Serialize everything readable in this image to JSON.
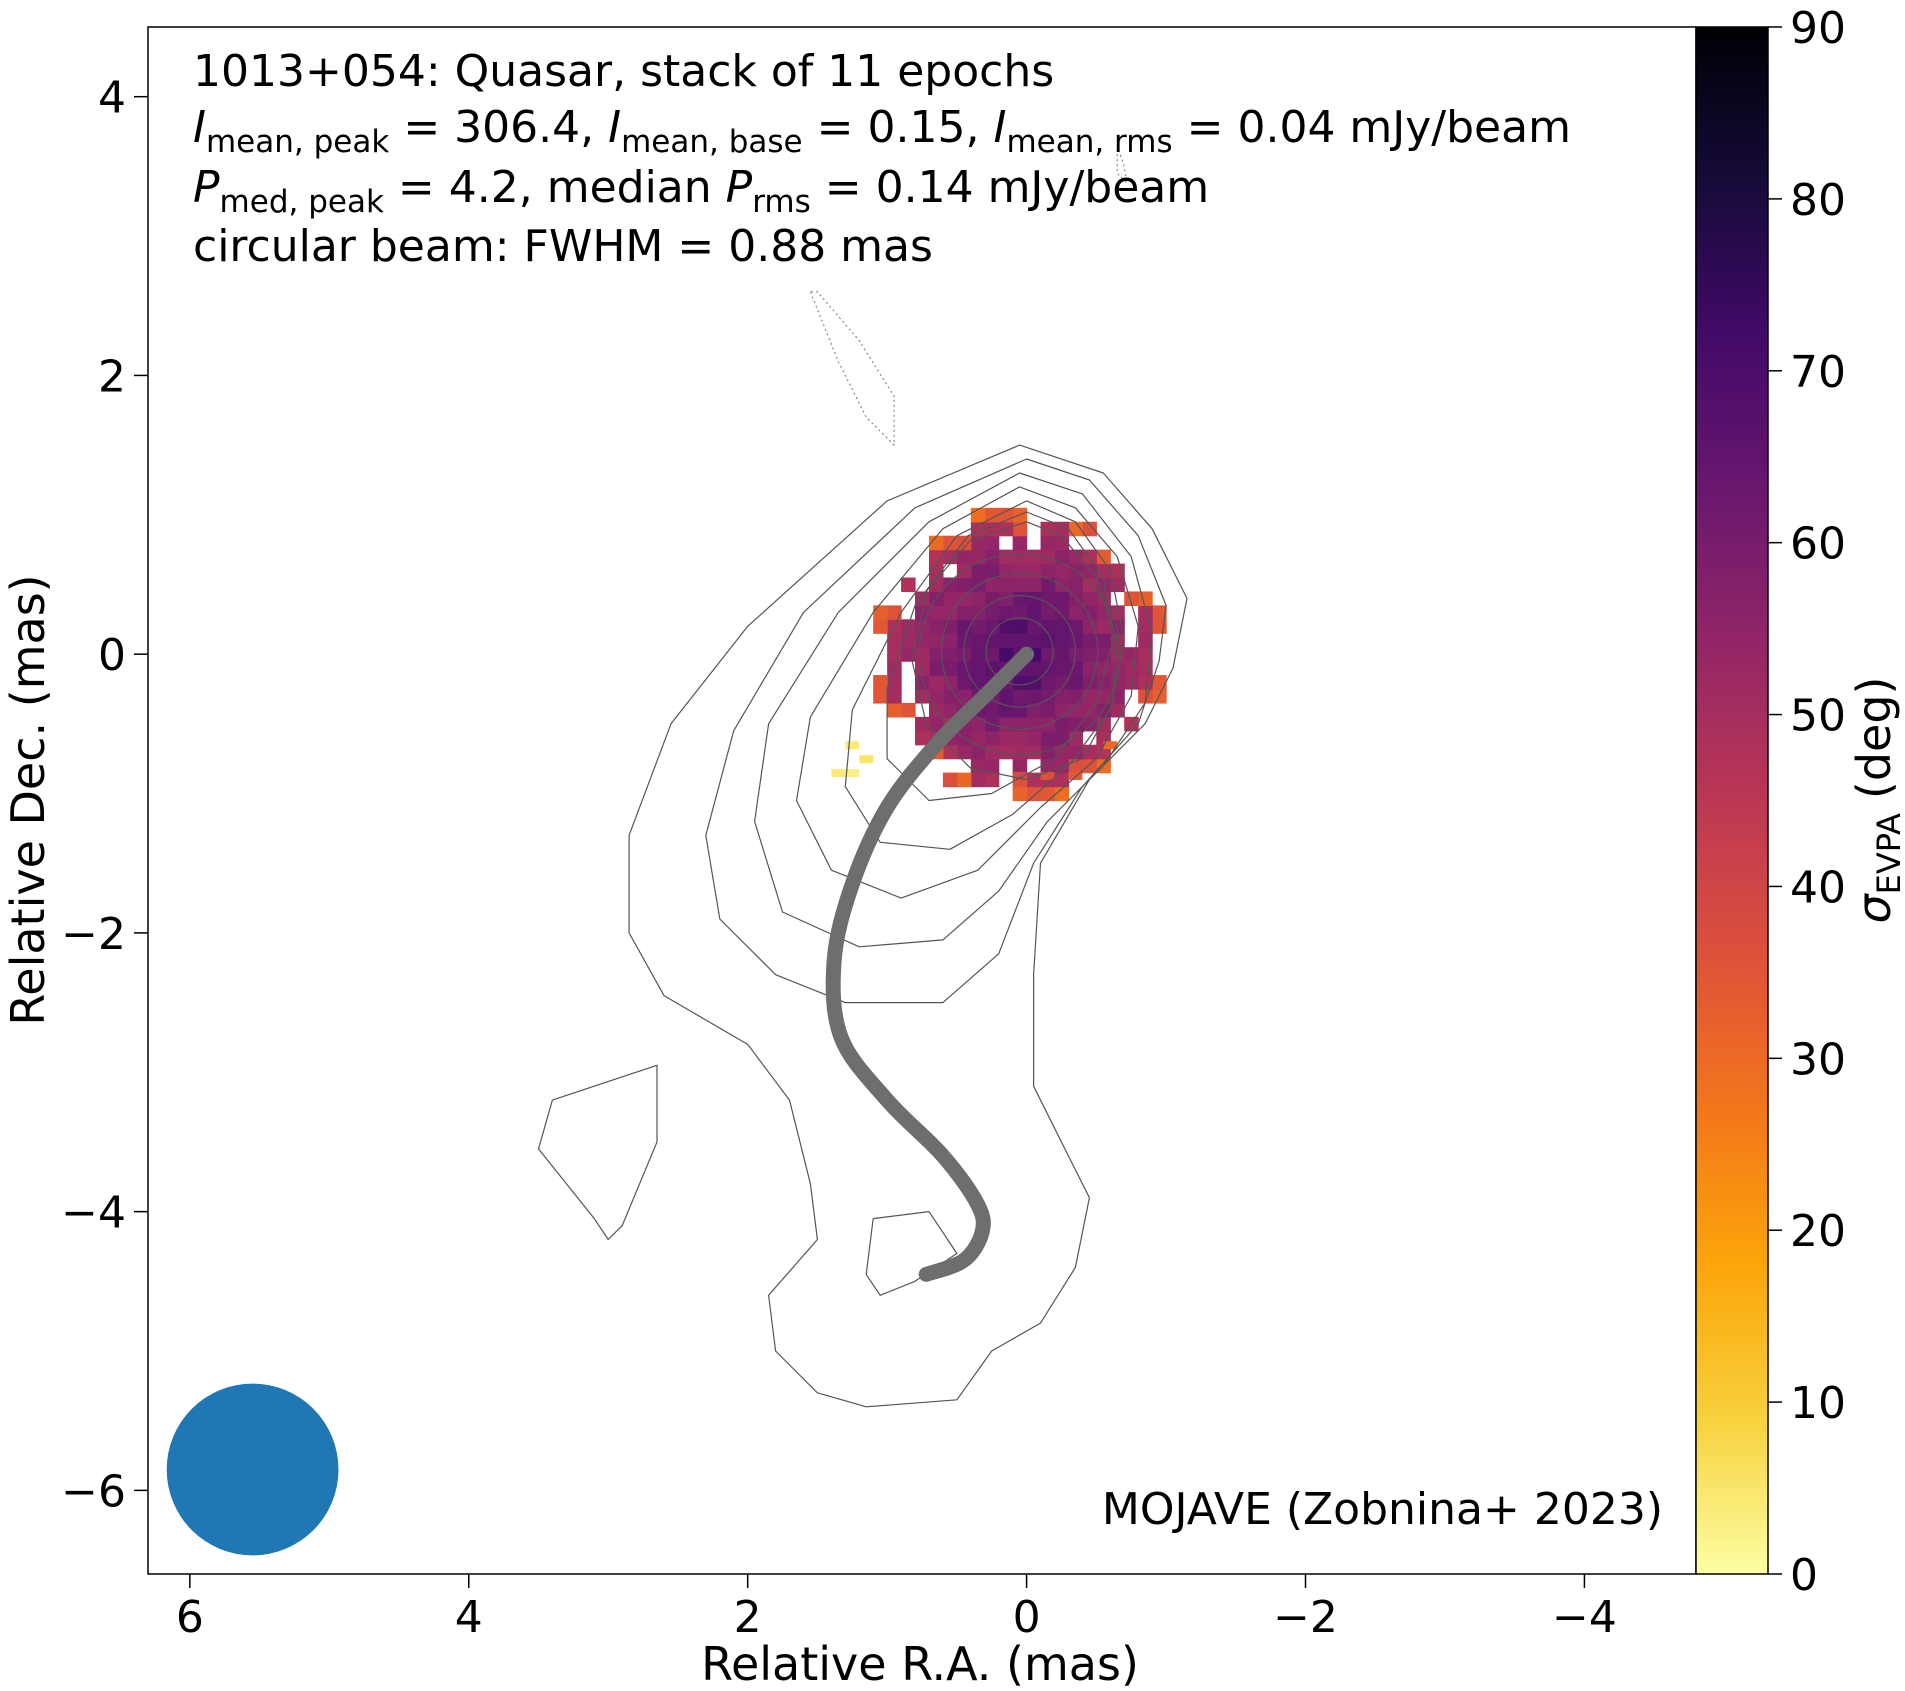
{
  "chart_data": {
    "type": "heatmap",
    "title_lines": [
      "1013+054: Quasar, stack of 11 epochs",
      "I_mean,peak = 306.4, I_mean,base = 0.15, I_mean,rms = 0.04 mJy/beam",
      "P_med,peak = 4.2, median P_rms = 0.14 mJy/beam",
      "circular beam: FWHM = 0.88 mas"
    ],
    "title_parts": {
      "source": "1013+054: Quasar, stack of 11 epochs",
      "i_sym": "I",
      "i_peak_sub": "mean, peak",
      "i_peak_val": "= 306.4,",
      "i_base_sub": "mean, base",
      "i_base_val": "= 0.15,",
      "i_rms_sub": "mean, rms",
      "i_rms_val": "= 0.04 mJy/beam",
      "p_sym": "P",
      "p_peak_sub": "med, peak",
      "p_peak_val": "= 4.2, median",
      "p_rms_sub": "rms",
      "p_rms_val": "= 0.14 mJy/beam",
      "beam": "circular beam: FWHM = 0.88 mas"
    },
    "annotation": "MOJAVE (Zobnina+ 2023)",
    "xlabel": "Relative R.A. (mas)",
    "ylabel": "Relative Dec. (mas)",
    "xlim": [
      6.3,
      -4.8
    ],
    "ylim": [
      -6.6,
      4.5
    ],
    "xticks": [
      6,
      4,
      2,
      0,
      -2,
      -4
    ],
    "yticks": [
      4,
      2,
      0,
      -2,
      -4,
      -6
    ],
    "xtick_labels": [
      "6",
      "4",
      "2",
      "0",
      "−2",
      "−4"
    ],
    "ytick_labels": [
      "4",
      "2",
      "0",
      "−2",
      "−4",
      "−6"
    ],
    "colorbar": {
      "label": "σ_EVPA (deg)",
      "label_sym": "σ",
      "label_sub": "EVPA",
      "label_unit": "(deg)",
      "range": [
        0,
        90
      ],
      "ticks": [
        0,
        10,
        20,
        30,
        40,
        50,
        60,
        70,
        80,
        90
      ],
      "colormap": "inferno_r",
      "colors": [
        "#fcffa4",
        "#f7d13d",
        "#fca50a",
        "#f3761b",
        "#dd513a",
        "#bc3754",
        "#932667",
        "#6a176e",
        "#420a68",
        "#160b39",
        "#000004"
      ]
    },
    "beam": {
      "fwhm_mas": 0.88,
      "center": [
        5.55,
        -5.85
      ],
      "color": "#1f77b4"
    },
    "ridge_line": {
      "color": "#6e6e6e",
      "points": [
        [
          0.0,
          0.0
        ],
        [
          0.3,
          -0.3
        ],
        [
          0.65,
          -0.65
        ],
        [
          1.0,
          -1.1
        ],
        [
          1.25,
          -1.65
        ],
        [
          1.38,
          -2.2
        ],
        [
          1.33,
          -2.75
        ],
        [
          1.0,
          -3.2
        ],
        [
          0.6,
          -3.6
        ],
        [
          0.35,
          -3.95
        ],
        [
          0.32,
          -4.15
        ],
        [
          0.45,
          -4.35
        ],
        [
          0.72,
          -4.45
        ]
      ]
    },
    "contours": [
      {
        "level": 1,
        "style": "dotted",
        "points": [
          [
            1.55,
            2.6
          ],
          [
            1.35,
            2.1
          ],
          [
            1.15,
            1.7
          ],
          [
            0.95,
            1.5
          ],
          [
            0.95,
            1.85
          ],
          [
            1.2,
            2.25
          ],
          [
            1.5,
            2.6
          ]
        ]
      },
      {
        "level": 1,
        "style": "dotted",
        "points": [
          [
            -0.65,
            3.65
          ],
          [
            -0.7,
            3.5
          ],
          [
            -0.72,
            3.38
          ],
          [
            -0.65,
            3.45
          ],
          [
            -0.65,
            3.65
          ]
        ]
      },
      {
        "level": 1,
        "style": "solid",
        "points": [
          [
            3.4,
            -3.2
          ],
          [
            2.95,
            -3.05
          ],
          [
            2.65,
            -2.95
          ],
          [
            2.65,
            -3.5
          ],
          [
            2.9,
            -4.1
          ],
          [
            3.0,
            -4.2
          ],
          [
            3.1,
            -4.05
          ],
          [
            3.5,
            -3.55
          ],
          [
            3.4,
            -3.2
          ]
        ]
      },
      {
        "level": 1,
        "style": "solid",
        "points": [
          [
            0.7,
            -4.0
          ],
          [
            1.1,
            -4.05
          ],
          [
            1.15,
            -4.45
          ],
          [
            1.05,
            -4.6
          ],
          [
            0.8,
            -4.5
          ],
          [
            0.5,
            -4.3
          ],
          [
            0.7,
            -4.0
          ]
        ]
      },
      {
        "level": 2,
        "style": "solid",
        "points": [
          [
            0.05,
            1.5
          ],
          [
            1.0,
            1.1
          ],
          [
            2.0,
            0.2
          ],
          [
            2.55,
            -0.5
          ],
          [
            2.85,
            -1.3
          ],
          [
            2.85,
            -2.0
          ],
          [
            2.6,
            -2.45
          ],
          [
            2.0,
            -2.8
          ],
          [
            1.7,
            -3.2
          ],
          [
            1.55,
            -3.8
          ],
          [
            1.5,
            -4.2
          ],
          [
            1.85,
            -4.6
          ],
          [
            1.8,
            -5.0
          ],
          [
            1.5,
            -5.3
          ],
          [
            1.15,
            -5.4
          ],
          [
            0.5,
            -5.35
          ],
          [
            0.25,
            -5.0
          ],
          [
            -0.1,
            -4.8
          ],
          [
            -0.35,
            -4.4
          ],
          [
            -0.45,
            -3.9
          ],
          [
            -0.3,
            -3.6
          ],
          [
            -0.05,
            -3.1
          ],
          [
            -0.05,
            -2.3
          ],
          [
            -0.1,
            -1.5
          ],
          [
            -0.45,
            -0.9
          ],
          [
            -0.85,
            -0.5
          ],
          [
            -1.05,
            -0.1
          ],
          [
            -1.15,
            0.4
          ],
          [
            -0.9,
            0.9
          ],
          [
            -0.55,
            1.3
          ],
          [
            0.05,
            1.5
          ]
        ]
      },
      {
        "level": 3,
        "style": "solid",
        "points": [
          [
            0.0,
            1.4
          ],
          [
            0.8,
            1.05
          ],
          [
            1.6,
            0.3
          ],
          [
            2.1,
            -0.55
          ],
          [
            2.3,
            -1.3
          ],
          [
            2.2,
            -1.9
          ],
          [
            1.8,
            -2.3
          ],
          [
            1.3,
            -2.5
          ],
          [
            0.6,
            -2.5
          ],
          [
            0.2,
            -2.15
          ],
          [
            -0.05,
            -1.5
          ],
          [
            -0.4,
            -0.95
          ],
          [
            -0.8,
            -0.5
          ],
          [
            -0.95,
            -0.05
          ],
          [
            -1.0,
            0.35
          ],
          [
            -0.8,
            0.85
          ],
          [
            -0.45,
            1.25
          ],
          [
            0.0,
            1.4
          ]
        ]
      },
      {
        "level": 4,
        "style": "solid",
        "points": [
          [
            0.05,
            1.3
          ],
          [
            0.7,
            0.95
          ],
          [
            1.35,
            0.3
          ],
          [
            1.85,
            -0.5
          ],
          [
            1.95,
            -1.2
          ],
          [
            1.75,
            -1.85
          ],
          [
            1.2,
            -2.1
          ],
          [
            0.6,
            -2.05
          ],
          [
            0.2,
            -1.7
          ],
          [
            -0.15,
            -1.2
          ],
          [
            -0.55,
            -0.8
          ],
          [
            -0.85,
            -0.35
          ],
          [
            -0.9,
            0.15
          ],
          [
            -0.75,
            0.7
          ],
          [
            -0.4,
            1.15
          ],
          [
            0.05,
            1.3
          ]
        ]
      },
      {
        "level": 5,
        "style": "solid",
        "points": [
          [
            0.05,
            1.2
          ],
          [
            0.6,
            0.9
          ],
          [
            1.1,
            0.3
          ],
          [
            1.55,
            -0.45
          ],
          [
            1.65,
            -1.05
          ],
          [
            1.4,
            -1.55
          ],
          [
            0.9,
            -1.75
          ],
          [
            0.35,
            -1.55
          ],
          [
            -0.1,
            -1.1
          ],
          [
            -0.5,
            -0.75
          ],
          [
            -0.75,
            -0.3
          ],
          [
            -0.8,
            0.2
          ],
          [
            -0.65,
            0.7
          ],
          [
            -0.35,
            1.05
          ],
          [
            0.05,
            1.2
          ]
        ]
      },
      {
        "level": 6,
        "style": "solid",
        "points": [
          [
            0.0,
            1.1
          ],
          [
            0.5,
            0.85
          ],
          [
            0.9,
            0.3
          ],
          [
            1.25,
            -0.4
          ],
          [
            1.3,
            -0.95
          ],
          [
            1.05,
            -1.35
          ],
          [
            0.55,
            -1.4
          ],
          [
            0.1,
            -1.15
          ],
          [
            -0.3,
            -0.8
          ],
          [
            -0.6,
            -0.4
          ],
          [
            -0.7,
            0.1
          ],
          [
            -0.6,
            0.6
          ],
          [
            -0.35,
            0.95
          ],
          [
            0.0,
            1.1
          ]
        ]
      },
      {
        "level": 7,
        "style": "solid",
        "points": [
          [
            0.0,
            1.02
          ],
          [
            0.42,
            0.85
          ],
          [
            0.8,
            0.35
          ],
          [
            1.0,
            -0.25
          ],
          [
            1.0,
            -0.75
          ],
          [
            0.7,
            -1.05
          ],
          [
            0.25,
            -1.0
          ],
          [
            -0.2,
            -0.75
          ],
          [
            -0.5,
            -0.35
          ],
          [
            -0.62,
            0.1
          ],
          [
            -0.55,
            0.55
          ],
          [
            -0.3,
            0.9
          ],
          [
            0.0,
            1.02
          ]
        ]
      },
      {
        "level": 8,
        "style": "solid",
        "points": [
          [
            0.0,
            0.95
          ],
          [
            0.4,
            0.82
          ],
          [
            0.72,
            0.45
          ],
          [
            0.82,
            -0.05
          ],
          [
            0.72,
            -0.5
          ],
          [
            0.4,
            -0.82
          ],
          [
            0.0,
            -0.9
          ],
          [
            -0.4,
            -0.75
          ],
          [
            -0.62,
            -0.35
          ],
          [
            -0.65,
            0.1
          ],
          [
            -0.5,
            0.55
          ],
          [
            -0.25,
            0.85
          ],
          [
            0.0,
            0.95
          ]
        ]
      },
      {
        "level": 9,
        "style": "circle",
        "center": [
          0.05,
          0.0
        ],
        "r": 0.72
      },
      {
        "level": 10,
        "style": "circle",
        "center": [
          0.05,
          0.02
        ],
        "r": 0.56
      },
      {
        "level": 11,
        "style": "circle",
        "center": [
          0.05,
          0.02
        ],
        "r": 0.4
      },
      {
        "level": 12,
        "style": "circle",
        "center": [
          0.05,
          0.02
        ],
        "r": 0.24
      }
    ],
    "evpa_map": {
      "pixel_size_mas": 0.1,
      "grid_dx_steps": 12,
      "grid_dy_steps": 10,
      "core_center": [
        0.05,
        0.0
      ],
      "core_radius": 0.98,
      "core_value_center": 70,
      "core_value_edge": 48,
      "ring_radius": [
        0.9,
        1.05
      ],
      "ring_value": 33,
      "weak_pixels": [
        [
          1.25,
          -0.65,
          4
        ],
        [
          1.15,
          -0.75,
          5
        ],
        [
          1.35,
          -0.85,
          4
        ],
        [
          1.25,
          -0.85,
          3
        ],
        [
          -0.15,
          -0.87,
          36
        ],
        [
          -0.35,
          -0.87,
          34
        ],
        [
          0.05,
          -0.87,
          38
        ],
        [
          -0.6,
          -0.65,
          30
        ]
      ]
    }
  }
}
